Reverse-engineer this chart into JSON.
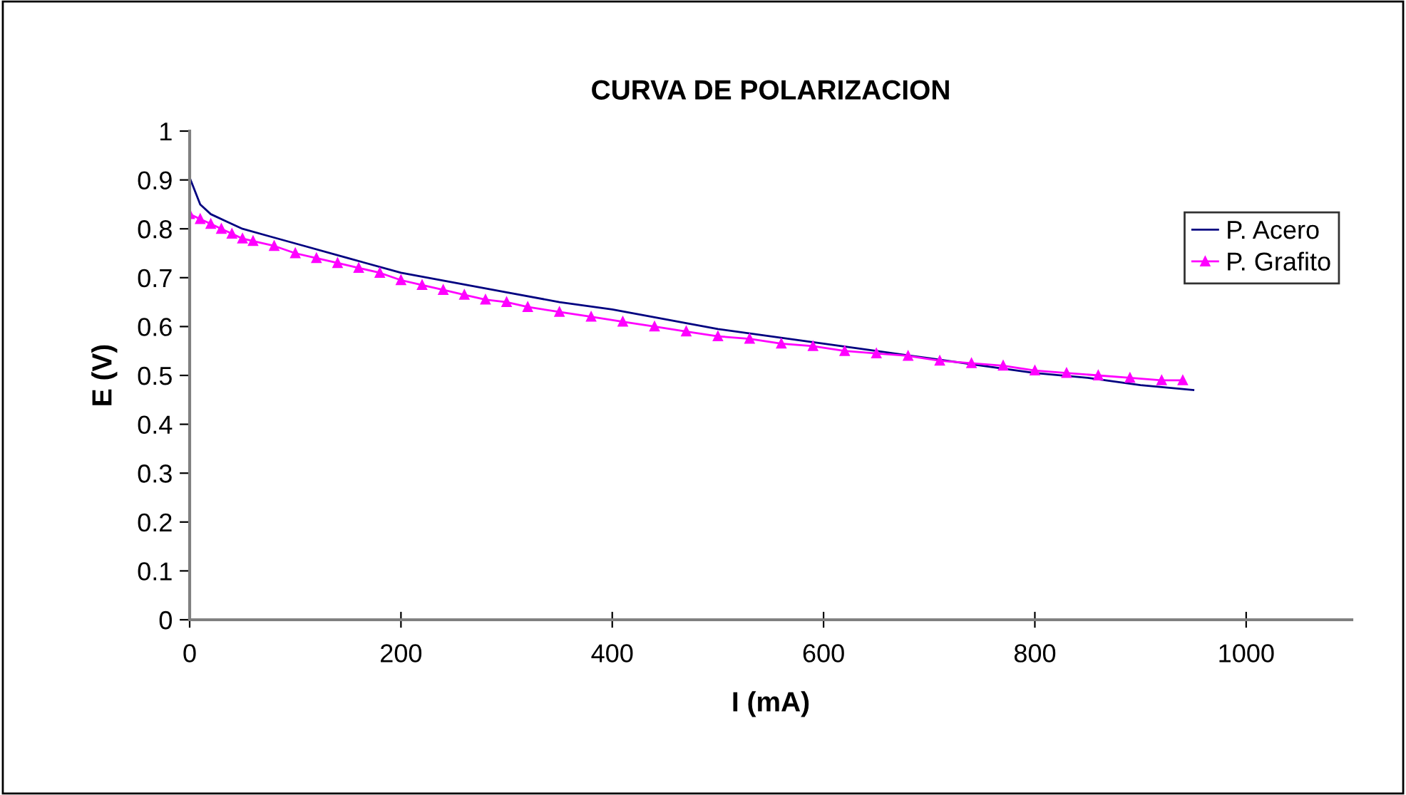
{
  "chart_data": {
    "type": "line",
    "title": "CURVA DE POLARIZACION",
    "xlabel": "I (mA)",
    "ylabel": "E (V)",
    "xlim": [
      0,
      1100
    ],
    "xticks": [
      0,
      200,
      400,
      600,
      800,
      1000
    ],
    "ylim": [
      0,
      1
    ],
    "yticks": [
      0,
      0.1,
      0.2,
      0.3,
      0.4,
      0.5,
      0.6,
      0.7,
      0.8,
      0.9,
      1
    ],
    "grid": false,
    "legend": "top right",
    "series": [
      {
        "name": "P. Acero",
        "color": "#000080",
        "marker": "none",
        "x": [
          0,
          10,
          20,
          35,
          50,
          75,
          100,
          150,
          200,
          250,
          300,
          350,
          400,
          450,
          500,
          550,
          600,
          650,
          700,
          750,
          800,
          850,
          900,
          950
        ],
        "values": [
          0.905,
          0.85,
          0.83,
          0.815,
          0.8,
          0.785,
          0.77,
          0.74,
          0.71,
          0.69,
          0.67,
          0.65,
          0.635,
          0.615,
          0.595,
          0.58,
          0.565,
          0.55,
          0.535,
          0.52,
          0.505,
          0.495,
          0.48,
          0.47
        ]
      },
      {
        "name": "P. Grafito",
        "color": "#ff00ff",
        "marker": "triangle",
        "x": [
          0,
          10,
          20,
          30,
          40,
          50,
          60,
          80,
          100,
          120,
          140,
          160,
          180,
          200,
          220,
          240,
          260,
          280,
          300,
          320,
          350,
          380,
          410,
          440,
          470,
          500,
          530,
          560,
          590,
          620,
          650,
          680,
          710,
          740,
          770,
          800,
          830,
          860,
          890,
          920,
          940
        ],
        "values": [
          0.83,
          0.82,
          0.81,
          0.8,
          0.79,
          0.78,
          0.775,
          0.765,
          0.75,
          0.74,
          0.73,
          0.72,
          0.71,
          0.695,
          0.685,
          0.675,
          0.665,
          0.655,
          0.65,
          0.64,
          0.63,
          0.62,
          0.61,
          0.6,
          0.59,
          0.58,
          0.575,
          0.565,
          0.56,
          0.55,
          0.545,
          0.54,
          0.53,
          0.525,
          0.52,
          0.51,
          0.505,
          0.5,
          0.495,
          0.49,
          0.49
        ]
      }
    ]
  }
}
